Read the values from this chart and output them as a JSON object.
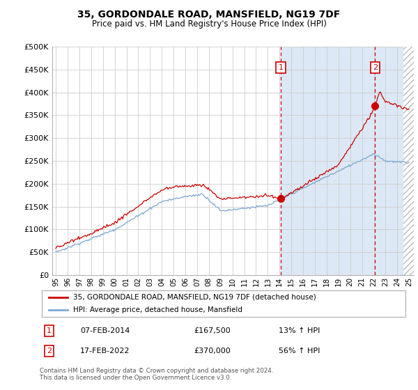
{
  "title": "35, GORDONDALE ROAD, MANSFIELD, NG19 7DF",
  "subtitle": "Price paid vs. HM Land Registry's House Price Index (HPI)",
  "legend_line1": "35, GORDONDALE ROAD, MANSFIELD, NG19 7DF (detached house)",
  "legend_line2": "HPI: Average price, detached house, Mansfield",
  "annotation1_label": "1",
  "annotation1_date": "07-FEB-2014",
  "annotation1_price": "£167,500",
  "annotation1_hpi": "13% ↑ HPI",
  "annotation1_year": 2014.1,
  "annotation1_value": 167500,
  "annotation2_label": "2",
  "annotation2_date": "17-FEB-2022",
  "annotation2_price": "£370,000",
  "annotation2_hpi": "56% ↑ HPI",
  "annotation2_year": 2022.1,
  "annotation2_value": 370000,
  "footer": "Contains HM Land Registry data © Crown copyright and database right 2024.\nThis data is licensed under the Open Government Licence v3.0.",
  "ylim": [
    0,
    500000
  ],
  "yticks": [
    0,
    50000,
    100000,
    150000,
    200000,
    250000,
    300000,
    350000,
    400000,
    450000,
    500000
  ],
  "plot_bg_color": "#ffffff",
  "grid_color": "#cccccc",
  "red_line_color": "#cc0000",
  "blue_line_color": "#7aa8d2",
  "shade_color": "#dce8f5",
  "dashed_line_color": "#cc0000",
  "title_fontsize": 10,
  "subtitle_fontsize": 8.5
}
